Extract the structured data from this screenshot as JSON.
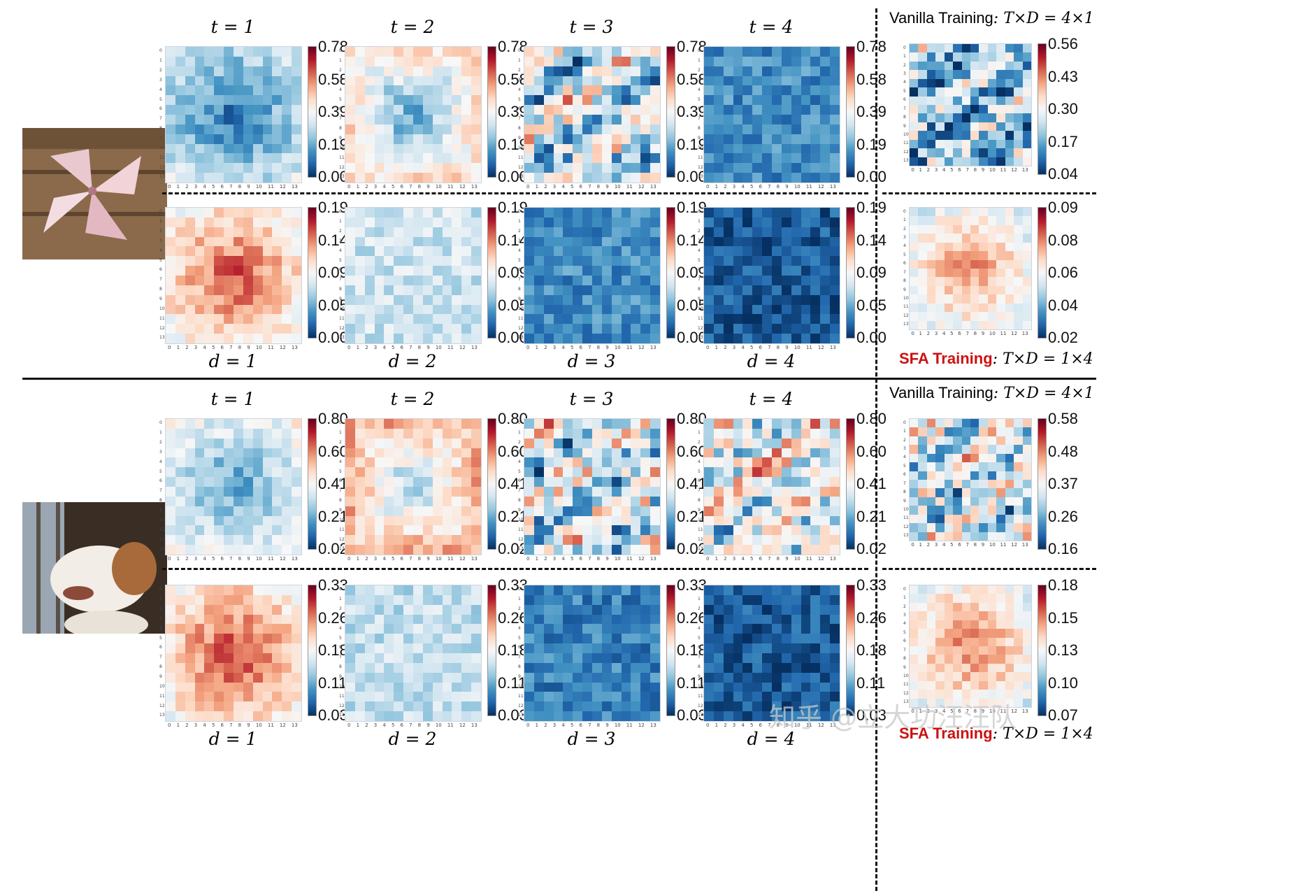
{
  "figure": {
    "vanilla_label_prefix": "Vanilla Training",
    "vanilla_label_formula": ": T×D = 4×1",
    "sfa_label_prefix": "SFA Training",
    "sfa_label_formula": ": T×D = 1×4",
    "watermark": "知乎 @立大功汪汪队",
    "tick_labels": [
      "0",
      "1",
      "2",
      "3",
      "4",
      "5",
      "6",
      "7",
      "8",
      "9",
      "10",
      "11",
      "12",
      "13"
    ]
  },
  "chart_data": [
    {
      "type": "heatmap",
      "panel": "pinwheel-t",
      "title": "t = 1",
      "colorbar_ticks": [
        "0.78",
        "0.58",
        "0.39",
        "0.19",
        "0.00"
      ],
      "range": [
        0,
        0.78
      ],
      "pattern": "cool-center",
      "level": 0.25
    },
    {
      "type": "heatmap",
      "panel": "pinwheel-t",
      "title": "t = 2",
      "colorbar_ticks": [
        "0.78",
        "0.58",
        "0.39",
        "0.19",
        "0.00"
      ],
      "range": [
        0,
        0.78
      ],
      "pattern": "warm-edges",
      "level": 0.38
    },
    {
      "type": "heatmap",
      "panel": "pinwheel-t",
      "title": "t = 3",
      "colorbar_ticks": [
        "0.78",
        "0.58",
        "0.39",
        "0.19",
        "0.00"
      ],
      "range": [
        0,
        0.78
      ],
      "pattern": "mixed",
      "level": 0.4
    },
    {
      "type": "heatmap",
      "panel": "pinwheel-t",
      "title": "t = 4",
      "colorbar_ticks": [
        "0.78",
        "0.58",
        "0.39",
        "0.19",
        "0.00"
      ],
      "range": [
        0,
        0.78
      ],
      "pattern": "cool",
      "level": 0.18
    },
    {
      "type": "heatmap",
      "panel": "pinwheel-vanilla",
      "title": "",
      "colorbar_ticks": [
        "0.56",
        "0.43",
        "0.30",
        "0.17",
        "0.04"
      ],
      "range": [
        0.04,
        0.56
      ],
      "pattern": "mixed",
      "level": 0.3
    },
    {
      "type": "heatmap",
      "panel": "pinwheel-d",
      "title": "d = 1",
      "colorbar_ticks": [
        "0.19",
        "0.14",
        "0.09",
        "0.05",
        "0.00"
      ],
      "range": [
        0,
        0.19
      ],
      "pattern": "warm-center",
      "level": 0.6
    },
    {
      "type": "heatmap",
      "panel": "pinwheel-d",
      "title": "d = 2",
      "colorbar_ticks": [
        "0.19",
        "0.14",
        "0.09",
        "0.05",
        "0.00"
      ],
      "range": [
        0,
        0.19
      ],
      "pattern": "cool",
      "level": 0.4
    },
    {
      "type": "heatmap",
      "panel": "pinwheel-d",
      "title": "d = 3",
      "colorbar_ticks": [
        "0.19",
        "0.14",
        "0.09",
        "0.05",
        "0.00"
      ],
      "range": [
        0,
        0.19
      ],
      "pattern": "cool",
      "level": 0.18
    },
    {
      "type": "heatmap",
      "panel": "pinwheel-d",
      "title": "d = 4",
      "colorbar_ticks": [
        "0.19",
        "0.14",
        "0.09",
        "0.05",
        "0.00"
      ],
      "range": [
        0,
        0.19
      ],
      "pattern": "cool",
      "level": 0.08
    },
    {
      "type": "heatmap",
      "panel": "pinwheel-sfa",
      "title": "",
      "colorbar_ticks": [
        "0.09",
        "0.08",
        "0.06",
        "0.04",
        "0.02"
      ],
      "range": [
        0.02,
        0.09
      ],
      "pattern": "warm-center",
      "level": 0.52
    },
    {
      "type": "heatmap",
      "panel": "dog-t",
      "title": "t = 1",
      "colorbar_ticks": [
        "0.80",
        "0.60",
        "0.41",
        "0.21",
        "0.02"
      ],
      "range": [
        0.02,
        0.8
      ],
      "pattern": "cool-center",
      "level": 0.34
    },
    {
      "type": "heatmap",
      "panel": "dog-t",
      "title": "t = 2",
      "colorbar_ticks": [
        "0.80",
        "0.60",
        "0.41",
        "0.21",
        "0.02"
      ],
      "range": [
        0.02,
        0.8
      ],
      "pattern": "warm-edges",
      "level": 0.48
    },
    {
      "type": "heatmap",
      "panel": "dog-t",
      "title": "t = 3",
      "colorbar_ticks": [
        "0.80",
        "0.60",
        "0.41",
        "0.21",
        "0.02"
      ],
      "range": [
        0.02,
        0.8
      ],
      "pattern": "mixed",
      "level": 0.42
    },
    {
      "type": "heatmap",
      "panel": "dog-t",
      "title": "t = 4",
      "colorbar_ticks": [
        "0.80",
        "0.60",
        "0.41",
        "0.21",
        "0.02"
      ],
      "range": [
        0.02,
        0.8
      ],
      "pattern": "mixed",
      "level": 0.46
    },
    {
      "type": "heatmap",
      "panel": "dog-vanilla",
      "title": "",
      "colorbar_ticks": [
        "0.58",
        "0.48",
        "0.37",
        "0.26",
        "0.16"
      ],
      "range": [
        0.16,
        0.58
      ],
      "pattern": "mixed",
      "level": 0.42
    },
    {
      "type": "heatmap",
      "panel": "dog-d",
      "title": "d = 1",
      "colorbar_ticks": [
        "0.33",
        "0.26",
        "0.18",
        "0.11",
        "0.03"
      ],
      "range": [
        0.03,
        0.33
      ],
      "pattern": "warm-center",
      "level": 0.62
    },
    {
      "type": "heatmap",
      "panel": "dog-d",
      "title": "d = 2",
      "colorbar_ticks": [
        "0.33",
        "0.26",
        "0.18",
        "0.11",
        "0.03"
      ],
      "range": [
        0.03,
        0.33
      ],
      "pattern": "cool",
      "level": 0.38
    },
    {
      "type": "heatmap",
      "panel": "dog-d",
      "title": "d = 3",
      "colorbar_ticks": [
        "0.33",
        "0.26",
        "0.18",
        "0.11",
        "0.03"
      ],
      "range": [
        0.03,
        0.33
      ],
      "pattern": "cool",
      "level": 0.16
    },
    {
      "type": "heatmap",
      "panel": "dog-d",
      "title": "d = 4",
      "colorbar_ticks": [
        "0.33",
        "0.26",
        "0.18",
        "0.11",
        "0.03"
      ],
      "range": [
        0.03,
        0.33
      ],
      "pattern": "cool",
      "level": 0.08
    },
    {
      "type": "heatmap",
      "panel": "dog-sfa",
      "title": "",
      "colorbar_ticks": [
        "0.18",
        "0.15",
        "0.13",
        "0.10",
        "0.07"
      ],
      "range": [
        0.07,
        0.18
      ],
      "pattern": "warm-center",
      "level": 0.55
    }
  ]
}
